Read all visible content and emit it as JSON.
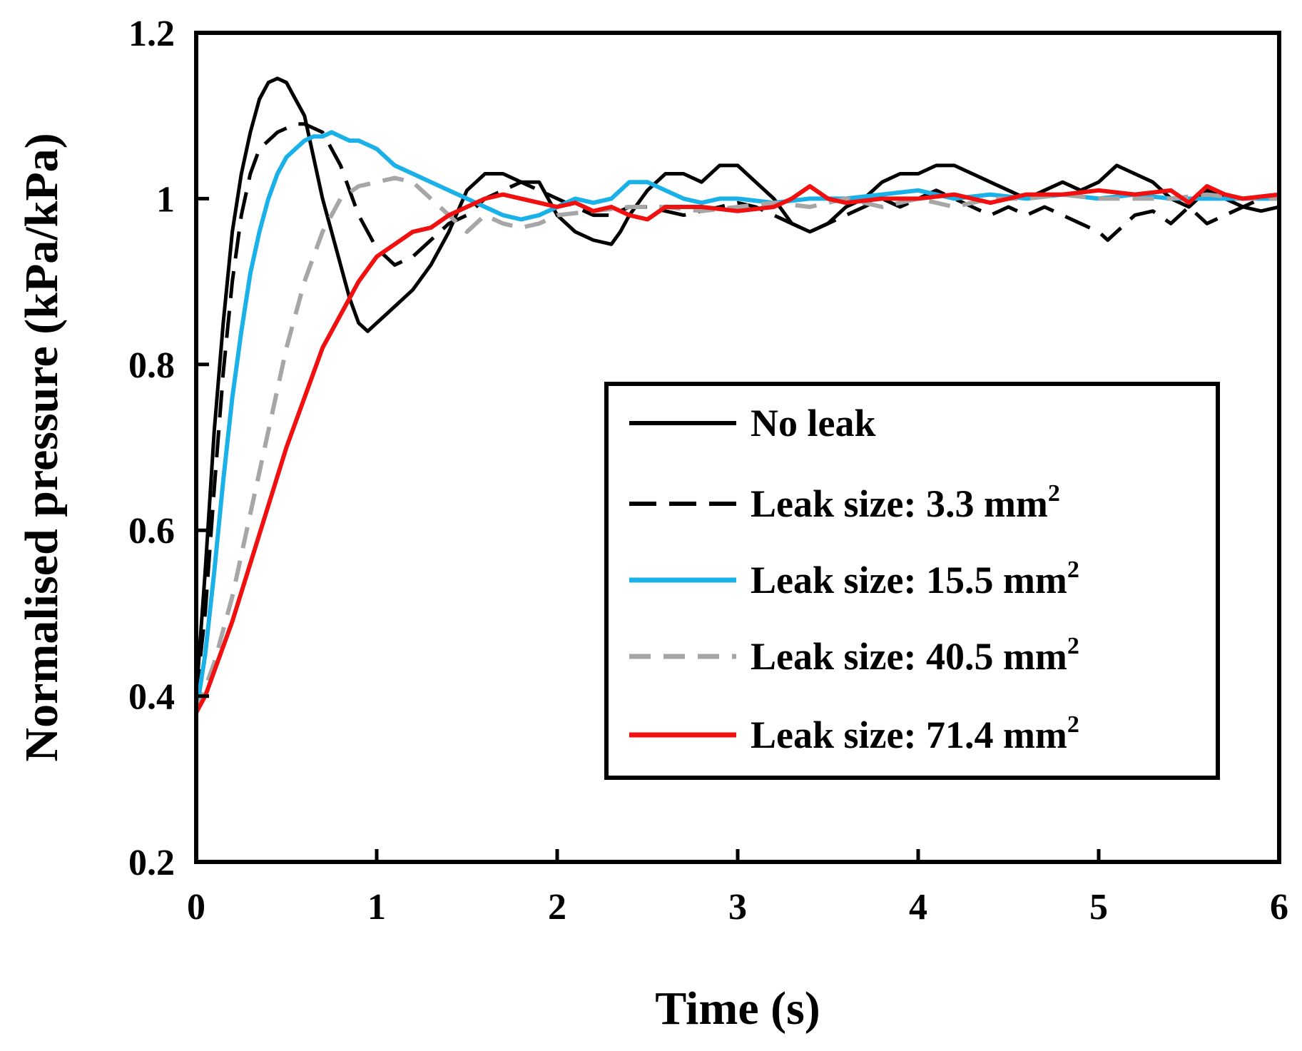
{
  "chart_data": {
    "type": "line",
    "title": "",
    "xlabel": "Time (s)",
    "ylabel": "Normalised pressure (kPa/kPa)",
    "xlim": [
      0,
      6
    ],
    "ylim": [
      0.2,
      1.2
    ],
    "xticks": [
      0,
      1,
      2,
      3,
      4,
      5,
      6
    ],
    "xtick_labels": [
      "0",
      "1",
      "2",
      "3",
      "4",
      "5",
      "6"
    ],
    "yticks": [
      0.2,
      0.4,
      0.6,
      0.8,
      1.0,
      1.2
    ],
    "ytick_labels": [
      "0.2",
      "0.4",
      "0.6",
      "0.8",
      "1",
      "1.2"
    ],
    "grid": false,
    "legend_position": "center-right",
    "series": [
      {
        "name": "No leak",
        "name_main": "No leak",
        "name_sup": "",
        "color": "#000000",
        "dash": "solid",
        "width": 5,
        "x": [
          0,
          0.05,
          0.1,
          0.15,
          0.2,
          0.25,
          0.3,
          0.35,
          0.4,
          0.45,
          0.5,
          0.55,
          0.6,
          0.65,
          0.7,
          0.75,
          0.8,
          0.85,
          0.9,
          0.95,
          1.0,
          1.05,
          1.1,
          1.15,
          1.2,
          1.3,
          1.4,
          1.5,
          1.55,
          1.6,
          1.7,
          1.8,
          1.9,
          2.0,
          2.1,
          2.2,
          2.3,
          2.35,
          2.4,
          2.5,
          2.6,
          2.7,
          2.8,
          2.9,
          3.0,
          3.1,
          3.2,
          3.3,
          3.4,
          3.5,
          3.6,
          3.7,
          3.8,
          3.9,
          4.0,
          4.1,
          4.2,
          4.3,
          4.4,
          4.5,
          4.6,
          4.7,
          4.8,
          4.9,
          5.0,
          5.1,
          5.2,
          5.3,
          5.4,
          5.5,
          5.6,
          5.7,
          5.8,
          5.9,
          6.0
        ],
        "y": [
          0.4,
          0.55,
          0.72,
          0.85,
          0.96,
          1.03,
          1.08,
          1.12,
          1.14,
          1.145,
          1.14,
          1.12,
          1.1,
          1.05,
          1.0,
          0.96,
          0.92,
          0.88,
          0.85,
          0.84,
          0.85,
          0.86,
          0.87,
          0.88,
          0.89,
          0.92,
          0.96,
          1.01,
          1.02,
          1.03,
          1.03,
          1.02,
          1.02,
          0.98,
          0.96,
          0.95,
          0.945,
          0.96,
          0.98,
          1.01,
          1.03,
          1.03,
          1.02,
          1.04,
          1.04,
          1.02,
          1.0,
          0.97,
          0.96,
          0.97,
          0.99,
          1.0,
          1.02,
          1.03,
          1.03,
          1.04,
          1.04,
          1.03,
          1.02,
          1.01,
          1.0,
          1.01,
          1.02,
          1.01,
          1.02,
          1.04,
          1.03,
          1.02,
          1.0,
          0.99,
          1.01,
          1.0,
          0.99,
          0.985,
          0.99
        ]
      },
      {
        "name": "Leak size: 3.3 mm2",
        "name_main": "Leak size: 3.3 mm",
        "name_sup": "2",
        "color": "#000000",
        "dash": "38 18",
        "width": 5,
        "x": [
          0,
          0.05,
          0.1,
          0.15,
          0.2,
          0.25,
          0.3,
          0.35,
          0.4,
          0.45,
          0.5,
          0.55,
          0.6,
          0.65,
          0.7,
          0.75,
          0.8,
          0.85,
          0.9,
          0.95,
          1.0,
          1.05,
          1.1,
          1.15,
          1.2,
          1.3,
          1.4,
          1.5,
          1.6,
          1.7,
          1.8,
          1.9,
          2.0,
          2.1,
          2.2,
          2.3,
          2.4,
          2.5,
          2.6,
          2.7,
          2.8,
          2.9,
          3.0,
          3.1,
          3.2,
          3.3,
          3.4,
          3.5,
          3.6,
          3.7,
          3.8,
          3.9,
          4.0,
          4.1,
          4.2,
          4.3,
          4.4,
          4.5,
          4.6,
          4.7,
          4.8,
          4.9,
          5.0,
          5.05,
          5.1,
          5.2,
          5.3,
          5.4,
          5.5,
          5.6,
          5.7,
          5.8,
          5.9,
          6.0
        ],
        "y": [
          0.4,
          0.5,
          0.65,
          0.79,
          0.9,
          0.98,
          1.03,
          1.06,
          1.07,
          1.08,
          1.085,
          1.09,
          1.09,
          1.085,
          1.08,
          1.06,
          1.04,
          1.01,
          0.98,
          0.96,
          0.94,
          0.93,
          0.92,
          0.925,
          0.93,
          0.95,
          0.97,
          0.98,
          1.0,
          1.01,
          1.02,
          1.01,
          1.0,
          0.99,
          0.98,
          0.98,
          0.99,
          0.99,
          0.985,
          0.98,
          0.985,
          0.99,
          0.995,
          0.99,
          0.98,
          0.97,
          0.96,
          0.97,
          0.98,
          0.99,
          1.0,
          0.99,
          1.0,
          1.01,
          1.0,
          0.99,
          0.98,
          0.99,
          0.98,
          0.99,
          0.98,
          0.97,
          0.96,
          0.95,
          0.96,
          0.98,
          0.985,
          0.97,
          0.99,
          0.97,
          0.98,
          0.99,
          1.0,
          1.0
        ]
      },
      {
        "name": "Leak size: 15.5 mm2",
        "name_main": "Leak size: 15.5 mm",
        "name_sup": "2",
        "color": "#1ab0e8",
        "dash": "solid",
        "width": 6,
        "x": [
          0,
          0.05,
          0.1,
          0.15,
          0.2,
          0.25,
          0.3,
          0.35,
          0.4,
          0.45,
          0.5,
          0.55,
          0.6,
          0.65,
          0.7,
          0.75,
          0.8,
          0.85,
          0.9,
          0.95,
          1.0,
          1.05,
          1.1,
          1.2,
          1.3,
          1.4,
          1.5,
          1.6,
          1.7,
          1.8,
          1.9,
          2.0,
          2.1,
          2.2,
          2.3,
          2.4,
          2.5,
          2.6,
          2.7,
          2.8,
          2.9,
          3.0,
          3.2,
          3.4,
          3.6,
          3.8,
          4.0,
          4.2,
          4.4,
          4.6,
          4.8,
          5.0,
          5.2,
          5.4,
          5.6,
          5.8,
          6.0
        ],
        "y": [
          0.38,
          0.45,
          0.55,
          0.66,
          0.76,
          0.84,
          0.91,
          0.96,
          1.0,
          1.03,
          1.05,
          1.06,
          1.07,
          1.075,
          1.075,
          1.08,
          1.075,
          1.07,
          1.07,
          1.065,
          1.06,
          1.05,
          1.04,
          1.03,
          1.02,
          1.01,
          1.0,
          0.99,
          0.98,
          0.975,
          0.98,
          0.99,
          1.0,
          0.995,
          1.0,
          1.02,
          1.02,
          1.01,
          1.0,
          0.995,
          1.0,
          1.0,
          0.995,
          1.0,
          1.0,
          1.005,
          1.01,
          1.0,
          1.005,
          1.0,
          1.005,
          1.0,
          1.005,
          1.0,
          1.0,
          1.0,
          1.0
        ]
      },
      {
        "name": "Leak size: 40.5 mm2",
        "name_main": "Leak size: 40.5 mm",
        "name_sup": "2",
        "color": "#a6a6a6",
        "dash": "30 18",
        "width": 6,
        "x": [
          0,
          0.1,
          0.2,
          0.3,
          0.4,
          0.5,
          0.6,
          0.7,
          0.8,
          0.9,
          1.0,
          1.1,
          1.2,
          1.3,
          1.4,
          1.5,
          1.6,
          1.7,
          1.8,
          1.9,
          2.0,
          2.2,
          2.4,
          2.6,
          2.8,
          3.0,
          3.2,
          3.4,
          3.6,
          3.8,
          4.0,
          4.2,
          4.4,
          4.6,
          4.8,
          5.0,
          5.2,
          5.4,
          5.6,
          5.8,
          6.0
        ],
        "y": [
          0.38,
          0.44,
          0.52,
          0.62,
          0.72,
          0.82,
          0.9,
          0.96,
          1.0,
          1.015,
          1.02,
          1.025,
          1.02,
          1.0,
          0.98,
          0.96,
          0.98,
          0.97,
          0.965,
          0.97,
          0.98,
          0.985,
          0.99,
          0.99,
          0.985,
          0.99,
          0.995,
          0.99,
          1.0,
          0.99,
          1.0,
          0.99,
          1.0,
          1.0,
          1.005,
          1.0,
          1.0,
          1.0,
          1.005,
          1.0,
          1.0
        ]
      },
      {
        "name": "Leak size: 71.4 mm2",
        "name_main": "Leak size: 71.4 mm",
        "name_sup": "2",
        "color": "#f01010",
        "dash": "solid",
        "width": 6,
        "x": [
          0,
          0.05,
          0.1,
          0.2,
          0.3,
          0.4,
          0.5,
          0.6,
          0.7,
          0.8,
          0.9,
          1.0,
          1.1,
          1.2,
          1.3,
          1.4,
          1.5,
          1.6,
          1.7,
          1.8,
          1.9,
          2.0,
          2.1,
          2.2,
          2.3,
          2.4,
          2.5,
          2.6,
          2.8,
          3.0,
          3.2,
          3.3,
          3.4,
          3.5,
          3.6,
          3.8,
          4.0,
          4.2,
          4.4,
          4.6,
          4.8,
          5.0,
          5.2,
          5.4,
          5.5,
          5.6,
          5.7,
          5.8,
          6.0
        ],
        "y": [
          0.38,
          0.4,
          0.43,
          0.49,
          0.56,
          0.63,
          0.7,
          0.76,
          0.82,
          0.86,
          0.9,
          0.93,
          0.945,
          0.96,
          0.965,
          0.98,
          0.99,
          1.0,
          1.005,
          1.0,
          0.995,
          0.99,
          0.995,
          0.985,
          0.99,
          0.98,
          0.975,
          0.99,
          0.99,
          0.985,
          0.99,
          1.0,
          1.015,
          1.0,
          0.995,
          1.0,
          1.0,
          1.005,
          0.995,
          1.005,
          1.005,
          1.01,
          1.005,
          1.01,
          0.995,
          1.015,
          1.005,
          1.0,
          1.005
        ]
      }
    ]
  }
}
